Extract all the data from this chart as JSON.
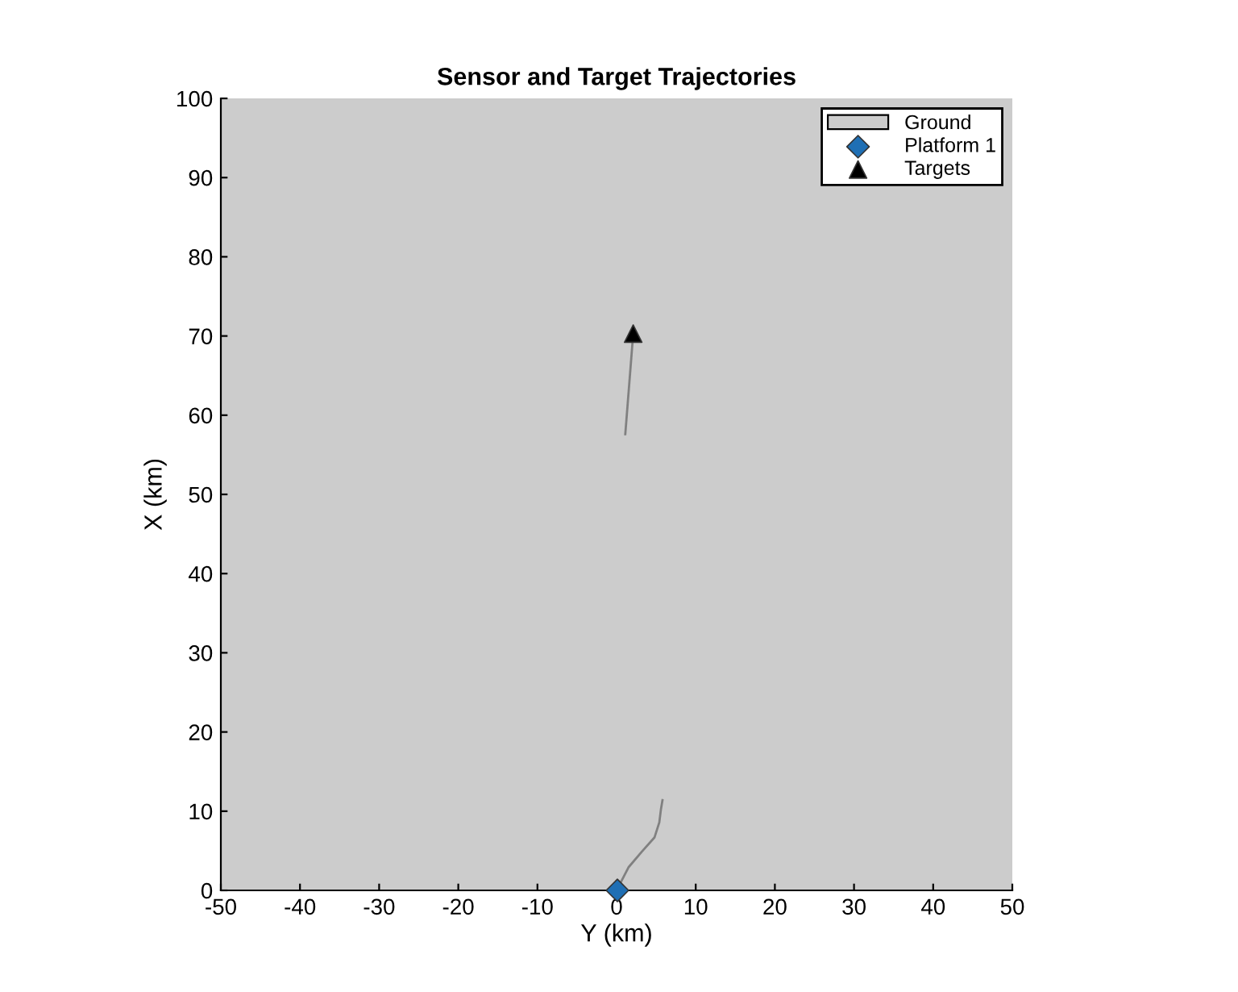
{
  "chart_data": {
    "type": "scatter",
    "title": "Sensor and Target Trajectories",
    "xlabel": "Y (km)",
    "ylabel": "X (km)",
    "xlim": [
      -50,
      50
    ],
    "ylim": [
      0,
      100
    ],
    "xticks": [
      -50,
      -40,
      -30,
      -20,
      -10,
      0,
      10,
      20,
      30,
      40,
      50
    ],
    "yticks": [
      0,
      10,
      20,
      30,
      40,
      50,
      60,
      70,
      80,
      90,
      100
    ],
    "grid": false,
    "legend": "top right",
    "bands": [
      {
        "axis": "y",
        "from": 0,
        "to": 100,
        "label": "Ground",
        "color": "#cccccc"
      }
    ],
    "series": [
      {
        "type": "line",
        "color": "#808080",
        "x": [
          0.1,
          1.5,
          3.2,
          4.8,
          5.4,
          5.6,
          5.8
        ],
        "values": [
          0.2,
          2.9,
          4.9,
          6.7,
          8.6,
          10.2,
          11.4
        ]
      },
      {
        "type": "line",
        "color": "#808080",
        "x": [
          1.1,
          2.1
        ],
        "values": [
          57.6,
          70.3
        ]
      },
      {
        "name": "Platform 1",
        "color": "#1f6fb4",
        "marker": "diamond",
        "x": [
          0.1
        ],
        "values": [
          0
        ]
      },
      {
        "name": "Targets",
        "color": "#000000",
        "marker": "triangle",
        "x": [
          2.1
        ],
        "values": [
          70.3
        ]
      }
    ]
  }
}
